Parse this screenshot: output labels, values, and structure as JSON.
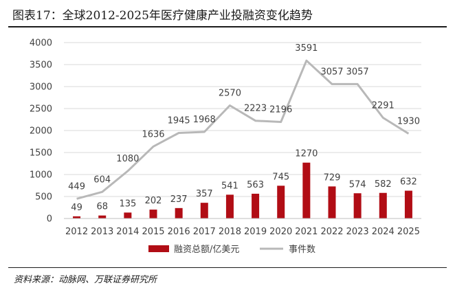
{
  "header": {
    "title": "图表17：全球2012-2025年医疗健康产业投融资变化趋势"
  },
  "footer": {
    "source": "资料来源：动脉网、万联证券研究所"
  },
  "colors": {
    "bar": "#b10d15",
    "line": "#b8b8b8",
    "grid": "#d9d9d9",
    "axis": "#bfbfbf"
  },
  "chart_data": {
    "type": "bar",
    "categories": [
      "2012",
      "2013",
      "2014",
      "2015",
      "2016",
      "2017",
      "2018",
      "2019",
      "2020",
      "2021",
      "2022",
      "2023",
      "2024",
      "2025"
    ],
    "series": [
      {
        "name": "融资总额/亿美元",
        "type": "bar",
        "values": [
          49,
          68,
          135,
          202,
          237,
          357,
          541,
          563,
          745,
          1270,
          729,
          574,
          582,
          632
        ]
      },
      {
        "name": "事件数",
        "type": "line",
        "values": [
          449,
          604,
          1080,
          1636,
          1945,
          1968,
          2570,
          2223,
          2196,
          3591,
          3057,
          3057,
          2291,
          1930
        ]
      }
    ],
    "yticks": [
      "0",
      "500",
      "1000",
      "1500",
      "2000",
      "2500",
      "3000",
      "3500",
      "4000"
    ],
    "ylim": [
      0,
      4000
    ],
    "grid": true,
    "legend_position": "bottom"
  }
}
